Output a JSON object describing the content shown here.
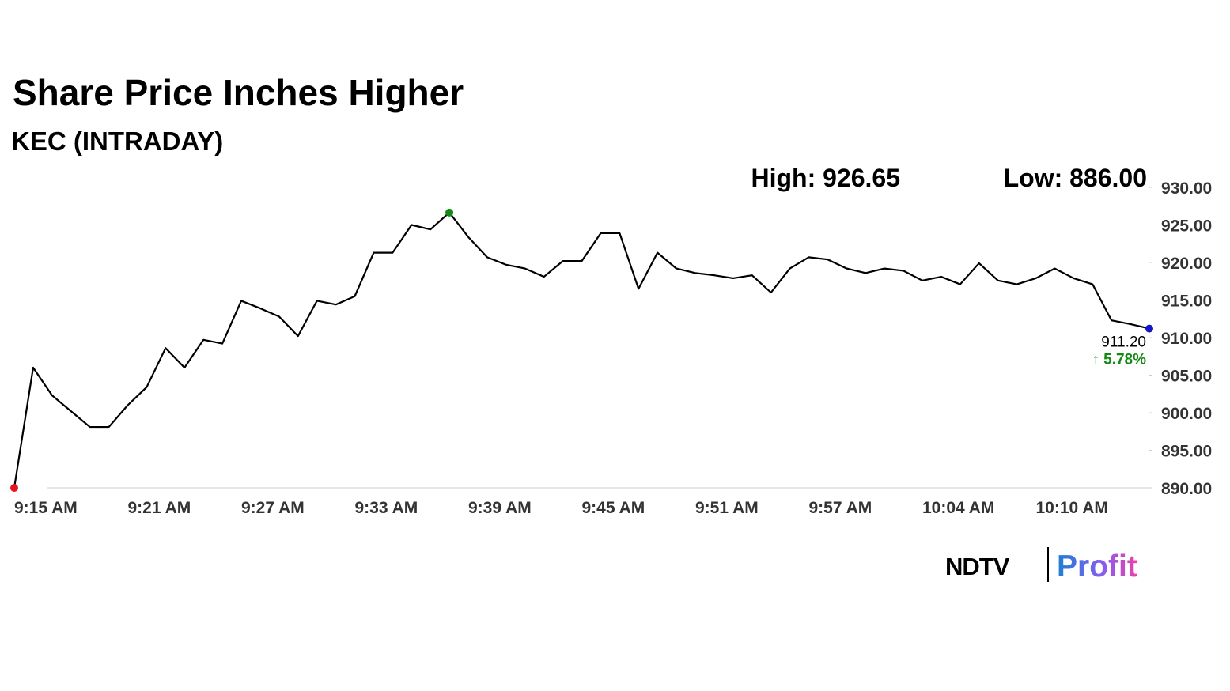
{
  "chart_data": {
    "type": "line",
    "title": "Share Price Inches Higher",
    "subtitle": "KEC (INTRADAY)",
    "high_label": "High: 926.65",
    "low_label": "Low: 886.00",
    "last_label": "911.20",
    "change_label": "↑ 5.78%",
    "categories": [
      "9:15 AM",
      null,
      null,
      null,
      null,
      null,
      "9:21 AM",
      null,
      null,
      null,
      null,
      null,
      "9:27 AM",
      null,
      null,
      null,
      null,
      null,
      "9:33 AM",
      null,
      null,
      null,
      null,
      null,
      "9:39 AM",
      null,
      null,
      null,
      null,
      null,
      "9:45 AM",
      null,
      null,
      null,
      null,
      null,
      "9:51 AM",
      null,
      null,
      null,
      null,
      null,
      "9:57 AM",
      null,
      null,
      null,
      null,
      null,
      "10:04 AM",
      null,
      null,
      null,
      null,
      null,
      "10:10 AM",
      null,
      null,
      null,
      null,
      null,
      null
    ],
    "series": [
      {
        "color": "#000000",
        "values": [
          890,
          906,
          902.3,
          900.2,
          898.1,
          898.1,
          901,
          903.4,
          908.6,
          906,
          909.7,
          909.2,
          914.9,
          913.9,
          912.8,
          910.2,
          914.9,
          914.4,
          915.5,
          921.3,
          921.3,
          925,
          924.4,
          926.65,
          923.4,
          920.7,
          919.7,
          919.2,
          918.1,
          920.2,
          920.2,
          923.9,
          923.9,
          916.5,
          921.3,
          919.2,
          918.6,
          918.3,
          917.9,
          918.3,
          916,
          919.2,
          920.7,
          920.4,
          919.2,
          918.6,
          919.2,
          918.9,
          917.6,
          918.1,
          917.1,
          919.9,
          917.6,
          917.1,
          917.9,
          919.2,
          917.9,
          917.1,
          912.3,
          911.8,
          911.2
        ]
      }
    ],
    "marker_colors": {
      "start": "#e8141c",
      "high": "#138a13",
      "end": "#1515c8"
    },
    "change_color": "#138a13",
    "ylim": [
      890,
      930
    ],
    "yticks": [
      {
        "value": 890,
        "label": "890.00"
      },
      {
        "value": 895,
        "label": "895.00"
      },
      {
        "value": 900,
        "label": "900.00"
      },
      {
        "value": 905,
        "label": "905.00"
      },
      {
        "value": 910,
        "label": "910.00"
      },
      {
        "value": 915,
        "label": "915.00"
      },
      {
        "value": 920,
        "label": "920.00"
      },
      {
        "value": 925,
        "label": "925.00"
      },
      {
        "value": 930,
        "label": "930.00"
      }
    ],
    "logo": {
      "brand": "NDTV",
      "product": "Profit"
    }
  }
}
